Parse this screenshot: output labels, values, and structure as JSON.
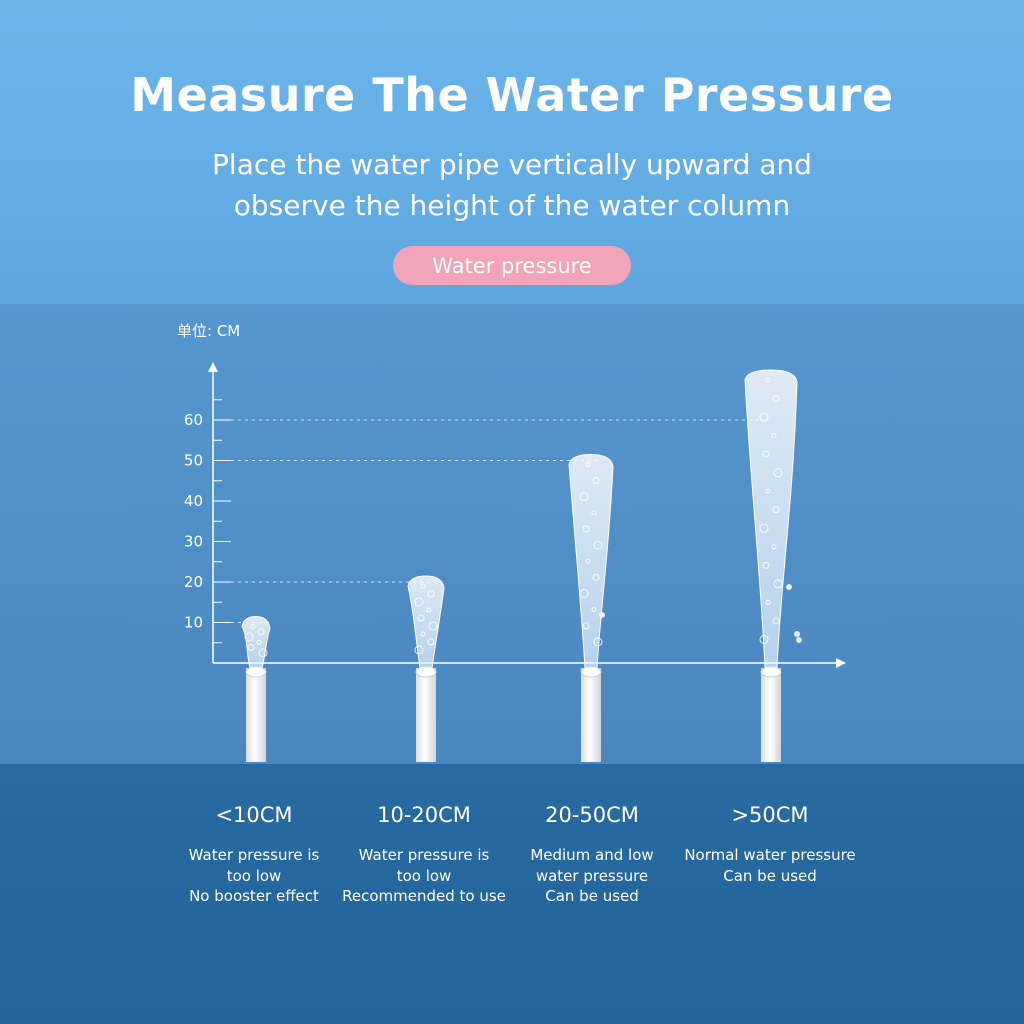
{
  "header": {
    "title": "Measure The Water Pressure",
    "subtitle_line1": "Place the water pipe vertically upward and",
    "subtitle_line2": "observe the height of the water column",
    "badge": "Water pressure"
  },
  "chart_data": {
    "type": "bar",
    "unit_label": "单位: CM",
    "y_ticks": [
      "10",
      "20",
      "30",
      "40",
      "50",
      "60"
    ],
    "ylim": [
      0,
      70
    ],
    "reference_lines": [
      10,
      20,
      50,
      60
    ],
    "series": [
      {
        "values": [
          10,
          20,
          50,
          60
        ]
      }
    ]
  },
  "categories": [
    {
      "label": "<10CM",
      "desc": [
        "Water pressure is",
        "too low",
        "No booster effect"
      ]
    },
    {
      "label": "10-20CM",
      "desc": [
        "Water pressure is",
        "too low",
        "Recommended to use"
      ]
    },
    {
      "label": "20-50CM",
      "desc": [
        "Medium and low",
        "water pressure",
        "Can be used"
      ]
    },
    {
      "label": ">50CM",
      "desc": [
        "Normal water pressure",
        "Can be used"
      ]
    }
  ],
  "colors": {
    "background_top": "#6db6ec",
    "background_bottom": "#23639c",
    "badge": "#f3a4b8",
    "text": "#ffffff"
  }
}
